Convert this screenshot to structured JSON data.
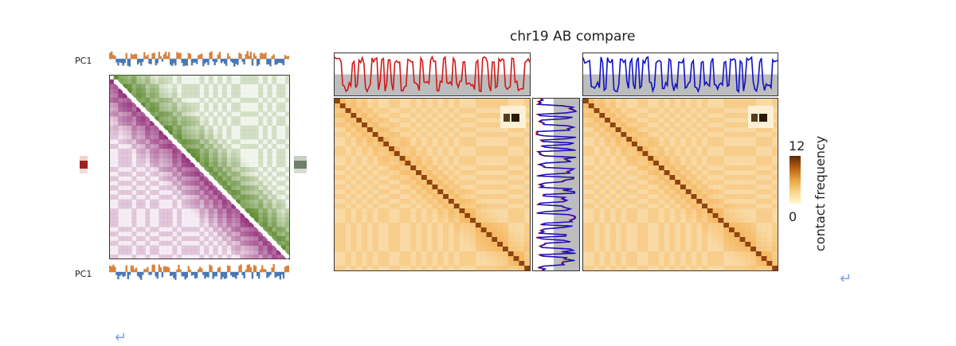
{
  "title": "chr19 AB compare",
  "pc_label_top": "PC1",
  "pc_label_bottom": "PC1",
  "colorbar": {
    "label": "contact frequency",
    "max_label": "12",
    "min_label": "0",
    "colors": [
      "#fff7d1",
      "#f9d48a",
      "#e9a240",
      "#b85f13",
      "#5a2a05"
    ]
  },
  "colors": {
    "pc_positive": "#d9823b",
    "pc_negative": "#4a78b3",
    "lower_triangle": "#8a1e6e",
    "upper_triangle": "#4f7f1c",
    "left_track": "#d01818",
    "right_track": "#1010c8",
    "track_bg": "#bdbdbd",
    "heatmap_base": "#f4b45a"
  },
  "paragraph_marks": [
    "↵",
    "↵"
  ]
}
